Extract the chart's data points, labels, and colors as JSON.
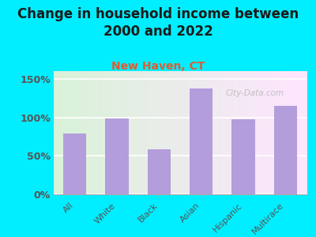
{
  "title": "Change in household income between\n2000 and 2022",
  "subtitle": "New Haven, CT",
  "categories": [
    "All",
    "White",
    "Black",
    "Asian",
    "Hispanic",
    "Multirace"
  ],
  "values": [
    79,
    98,
    58,
    137,
    97,
    115
  ],
  "bar_color": "#b39ddb",
  "background_outer": "#00eeff",
  "background_inner_top_left": "#c8e6c9",
  "background_inner_top_right": "#e8f5e9",
  "background_inner_bottom": "#f0f8f0",
  "title_fontsize": 12,
  "title_color": "#1a1a1a",
  "subtitle_fontsize": 10,
  "subtitle_color": "#e05c30",
  "tick_label_color": "#555555",
  "xtick_color": "#555555",
  "ylabel_ticks": [
    0,
    50,
    100,
    150
  ],
  "ylim": [
    0,
    160
  ],
  "watermark": "City-Data.com",
  "watermark_color": "#bbbbbb"
}
